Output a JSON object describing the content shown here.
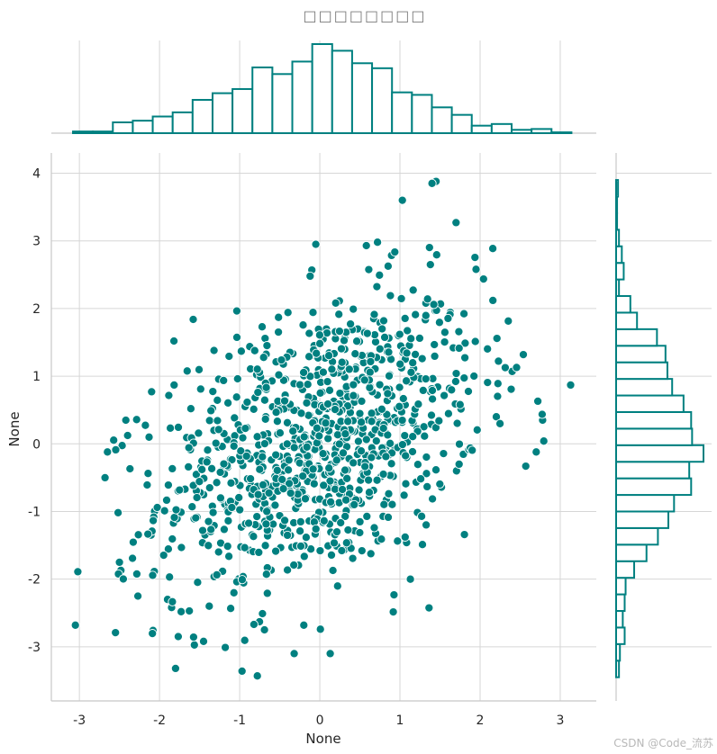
{
  "title": "□□□□□□□□",
  "watermark": "CSDN @Code_流苏",
  "colors": {
    "accent": "#008080",
    "grid": "#d6d6d6",
    "spine": "#c8c8c8",
    "text": "#262626"
  },
  "chart_data": {
    "type": "scatter",
    "title": "□□□□□□□□",
    "xlabel": "None",
    "ylabel": "None",
    "xlim": [
      -3.35,
      3.45
    ],
    "ylim": [
      -3.8,
      4.3
    ],
    "xticks": [
      -3,
      -2,
      -1,
      0,
      1,
      2,
      3
    ],
    "yticks": [
      -3,
      -2,
      -1,
      0,
      1,
      2,
      3,
      4
    ],
    "grid": true,
    "point_count": 1000,
    "points": [
      [
        -3.05,
        -2.68
      ],
      [
        -3.02,
        -1.89
      ],
      [
        -2.55,
        -2.79
      ],
      [
        -2.5,
        -1.75
      ],
      [
        -1.8,
        -3.32
      ],
      [
        -0.97,
        -3.36
      ],
      [
        -0.78,
        -3.43
      ],
      [
        0.13,
        -3.1
      ],
      [
        -0.32,
        -3.1
      ],
      [
        -1.45,
        -2.92
      ],
      [
        1.03,
        3.6
      ],
      [
        1.45,
        3.88
      ],
      [
        1.4,
        3.85
      ],
      [
        1.7,
        3.27
      ],
      [
        -0.05,
        2.95
      ],
      [
        0.72,
        2.98
      ],
      [
        0.58,
        2.93
      ],
      [
        1.38,
        2.65
      ],
      [
        1.95,
        2.58
      ],
      [
        2.16,
        2.12
      ],
      [
        2.4,
        1.07
      ],
      [
        2.54,
        1.32
      ],
      [
        2.78,
        0.35
      ],
      [
        3.13,
        0.87
      ],
      [
        2.72,
        0.63
      ],
      [
        2.57,
        -0.33
      ],
      [
        2.7,
        -0.12
      ],
      [
        -2.65,
        -0.12
      ],
      [
        -2.68,
        -0.5
      ],
      [
        -2.42,
        0.35
      ],
      [
        -2.13,
        0.1
      ],
      [
        -1.82,
        1.52
      ],
      [
        -1.58,
        1.84
      ],
      [
        -1.32,
        1.38
      ],
      [
        -0.98,
        1.37
      ],
      [
        -0.72,
        1.73
      ],
      [
        -0.1,
        2.57
      ],
      [
        1.13,
        -2.0
      ],
      [
        -1.85,
        -2.42
      ],
      [
        -1.73,
        -2.48
      ],
      [
        -1.38,
        -2.4
      ],
      [
        -2.27,
        -2.25
      ],
      [
        -1.9,
        -2.3
      ],
      [
        -1.18,
        -3.01
      ],
      [
        -0.2,
        -2.68
      ]
    ]
  }
}
